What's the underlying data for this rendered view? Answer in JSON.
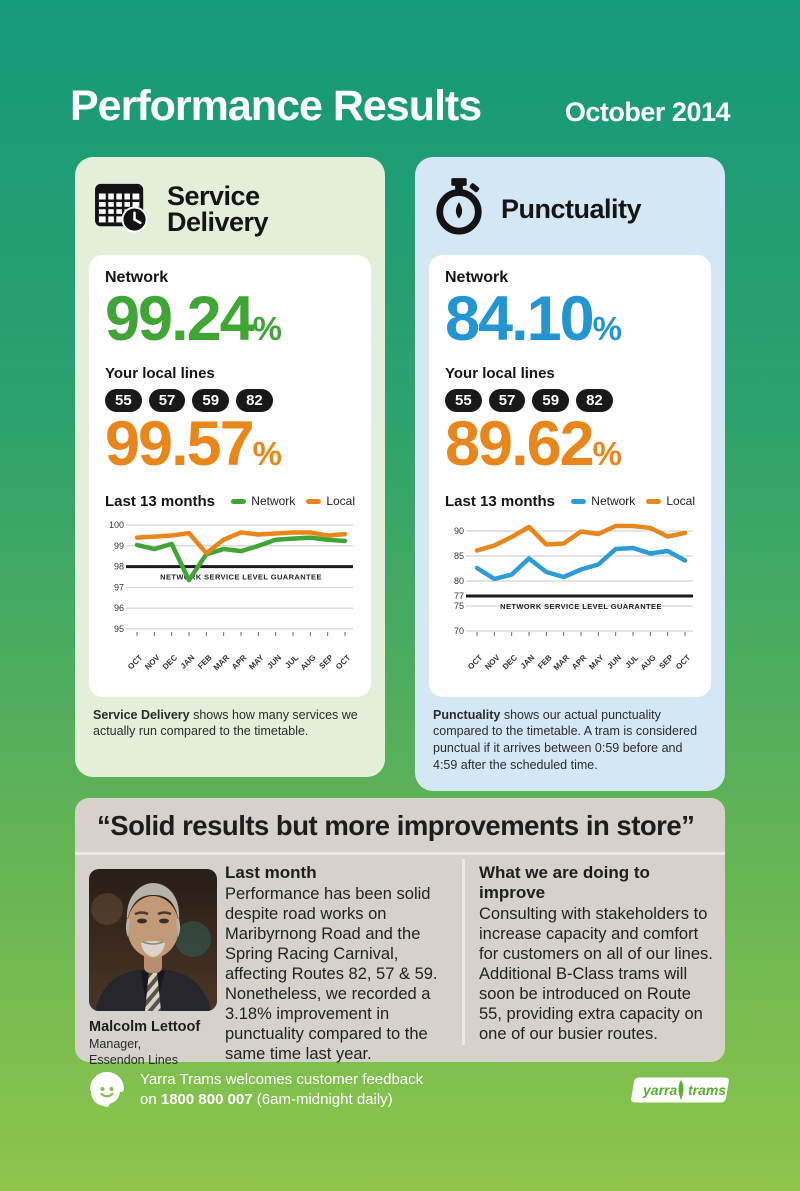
{
  "page": {
    "title": "Performance Results",
    "date": "October 2014"
  },
  "percent_sign": "%",
  "cards": [
    {
      "title": "Service Delivery",
      "icon": "timetable-calendar-icon",
      "network_label": "Network",
      "network_value": "99.24",
      "local_label": "Your local lines",
      "routes": [
        "55",
        "57",
        "59",
        "82"
      ],
      "local_value": "99.57",
      "accent_color": "#3FA535",
      "local_color": "#E9861A",
      "bg_color": "#E3EFD8",
      "footnote_bold": "Service Delivery",
      "footnote_rest": " shows how many services we actually run compared to the timetable."
    },
    {
      "title": "Punctuality",
      "icon": "stopwatch-icon",
      "network_label": "Network",
      "network_value": "84.10",
      "local_label": "Your local lines",
      "routes": [
        "55",
        "57",
        "59",
        "82"
      ],
      "local_value": "89.62",
      "accent_color": "#2196D2",
      "local_color": "#E9861A",
      "bg_color": "#D3E8F4",
      "footnote_bold": "Punctuality",
      "footnote_rest": " shows our actual punctuality compared to the timetable. A tram is considered punctual if it arrives between 0:59 before and 4:59 after the scheduled time."
    }
  ],
  "chart_data": [
    {
      "type": "line",
      "title": "Last 13 months",
      "categories": [
        "OCT",
        "NOV",
        "DEC",
        "JAN",
        "FEB",
        "MAR",
        "APR",
        "MAY",
        "JUN",
        "JUL",
        "AUG",
        "SEP",
        "OCT"
      ],
      "yticks": [
        95,
        96,
        97,
        98,
        99,
        100
      ],
      "ylim": [
        94.85,
        100.25
      ],
      "grid": true,
      "legend_position": "top-right",
      "guarantee": {
        "value": 98,
        "label": "NETWORK SERVICE LEVEL GUARANTEE"
      },
      "series": [
        {
          "name": "Network",
          "color": "#3FA535",
          "values": [
            99.05,
            98.85,
            99.1,
            97.35,
            98.6,
            98.85,
            98.75,
            99.0,
            99.3,
            99.35,
            99.4,
            99.3,
            99.24
          ]
        },
        {
          "name": "Local",
          "color": "#E9861A",
          "values": [
            99.4,
            99.45,
            99.5,
            99.62,
            98.65,
            99.3,
            99.65,
            99.55,
            99.6,
            99.65,
            99.65,
            99.5,
            99.57
          ]
        }
      ]
    },
    {
      "type": "line",
      "title": "Last 13 months",
      "categories": [
        "OCT",
        "NOV",
        "DEC",
        "JAN",
        "FEB",
        "MAR",
        "APR",
        "MAY",
        "JUN",
        "JUL",
        "AUG",
        "SEP",
        "OCT"
      ],
      "yticks": [
        70,
        75,
        77,
        80,
        85,
        90
      ],
      "ylim": [
        69.8,
        92.2
      ],
      "grid": true,
      "legend_position": "top-right",
      "guarantee": {
        "value": 77,
        "label": "NETWORK SERVICE LEVEL GUARANTEE"
      },
      "series": [
        {
          "name": "Network",
          "color": "#2B9CD8",
          "values": [
            82.6,
            80.4,
            81.3,
            84.5,
            81.8,
            80.8,
            82.3,
            83.3,
            86.4,
            86.6,
            85.5,
            86.0,
            84.1
          ]
        },
        {
          "name": "Local",
          "color": "#E9861A",
          "values": [
            86.1,
            87.1,
            88.8,
            90.8,
            87.3,
            87.5,
            89.9,
            89.4,
            91.0,
            91.0,
            90.6,
            88.9,
            89.62
          ]
        }
      ]
    }
  ],
  "quote": "“Solid results but more improvements in store”",
  "profile": {
    "name": "Malcolm Lettoof",
    "role": "Manager,",
    "org": "Essendon Lines"
  },
  "columns": {
    "last_month": {
      "heading": "Last month",
      "body": "Performance has been solid despite road works on Maribyrnong Road and the Spring Racing Carnival, affecting Routes 82, 57 & 59. Nonetheless, we recorded a 3.18% improvement in punctuality compared to the same time last year."
    },
    "improve": {
      "heading": "What we are doing to improve",
      "body": "Consulting with stakeholders to increase capacity and comfort for customers on all of our lines. Additional B-Class trams will soon be introduced on Route 55, providing extra capacity on one of our busier routes."
    }
  },
  "footer": {
    "line1": "Yarra Trams welcomes customer feedback",
    "line2_prefix": "on ",
    "phone": "1800 800 007",
    "line2_suffix": " (6am-midnight daily)",
    "logo_word1": "yarra",
    "logo_word2": "trams"
  }
}
